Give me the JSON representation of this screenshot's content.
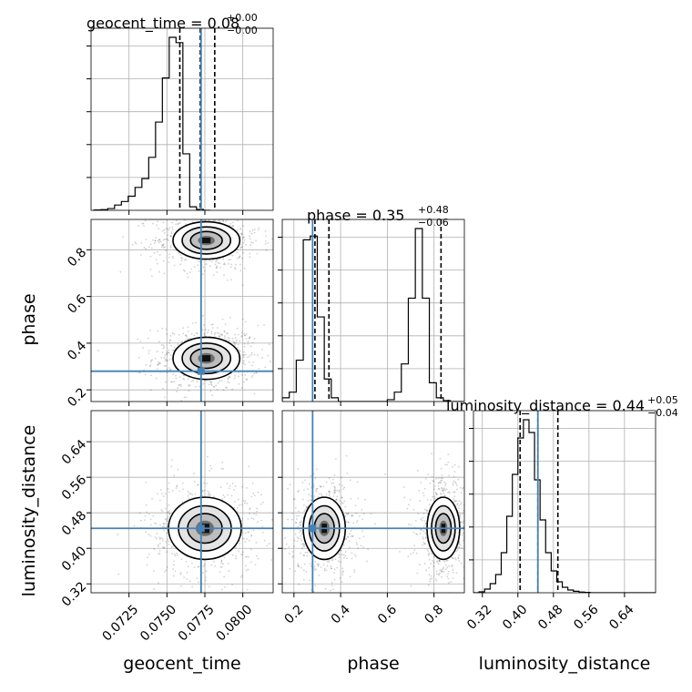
{
  "chart_data": {
    "type": "corner",
    "grid": true,
    "truth_color": "#4682b4",
    "contour_color": "#000000",
    "params": [
      {
        "key": "geocent_time",
        "label": "geocent_time",
        "title_main": "geocent_time = 0.08",
        "title_plus": "+0.00",
        "title_minus": "−0.00",
        "range": [
          0.07,
          0.082
        ],
        "ticks": [
          0.0725,
          0.075,
          0.0775,
          0.08
        ],
        "tick_labels": [
          "0.0725",
          "0.0750",
          "0.0775",
          "0.0800"
        ],
        "truth": 0.07725,
        "quantiles": [
          0.07585,
          0.0772,
          0.07815
        ],
        "hist": {
          "edges_start": 0.0702,
          "bin_width": 0.00045,
          "values": [
            0.002,
            0.004,
            0.01,
            0.03,
            0.05,
            0.08,
            0.13,
            0.18,
            0.3,
            0.5,
            0.75,
            0.98,
            0.95,
            0.32,
            0.02,
            0.005,
            0
          ]
        }
      },
      {
        "key": "phase",
        "label": "phase",
        "title_main": "phase = 0.35",
        "title_plus": "+0.48",
        "title_minus": "−0.06",
        "range": [
          0.15,
          0.93
        ],
        "ticks": [
          0.2,
          0.4,
          0.6,
          0.8
        ],
        "tick_labels": [
          "0.2",
          "0.4",
          "0.6",
          "0.8"
        ],
        "truth": 0.28,
        "quantiles": [
          0.29,
          0.35,
          0.83
        ],
        "hist": {
          "edges_start": 0.15,
          "bin_width": 0.03,
          "values": [
            0.02,
            0.05,
            0.22,
            0.86,
            0.88,
            0.45,
            0.12,
            0.02,
            0,
            0,
            0,
            0,
            0,
            0,
            0,
            0.01,
            0.05,
            0.2,
            0.55,
            0.92,
            0.55,
            0.1,
            0.02,
            0.005,
            0,
            0
          ]
        }
      },
      {
        "key": "luminosity_distance",
        "label": "luminosity_distance",
        "title_main": "luminosity_distance = 0.44",
        "title_plus": "+0.05",
        "title_minus": "−0.04",
        "range": [
          0.3,
          0.71
        ],
        "ticks": [
          0.32,
          0.4,
          0.48,
          0.56,
          0.64
        ],
        "tick_labels": [
          "0.32",
          "0.40",
          "0.48",
          "0.56",
          "0.64"
        ],
        "truth": 0.445,
        "quantiles": [
          0.405,
          0.445,
          0.49
        ],
        "hist": {
          "edges_start": 0.3,
          "bin_width": 0.0125,
          "values": [
            0,
            0.005,
            0.02,
            0.05,
            0.1,
            0.22,
            0.42,
            0.65,
            0.85,
            0.95,
            0.88,
            0.62,
            0.4,
            0.22,
            0.12,
            0.06,
            0.03,
            0.015,
            0.008,
            0.004,
            0.002,
            0,
            0,
            0,
            0,
            0,
            0,
            0,
            0,
            0,
            0,
            0,
            0
          ]
        }
      }
    ],
    "pairs": [
      {
        "row": 1,
        "col": 0,
        "modes": [
          {
            "cx": 0.0776,
            "cy": 0.335,
            "sx": 0.0011,
            "sy": 0.045
          },
          {
            "cx": 0.0776,
            "cy": 0.84,
            "sx": 0.0011,
            "sy": 0.04
          }
        ]
      },
      {
        "row": 2,
        "col": 0,
        "modes": [
          {
            "cx": 0.0775,
            "cy": 0.445,
            "sx": 0.0012,
            "sy": 0.035
          }
        ]
      },
      {
        "row": 2,
        "col": 1,
        "modes": [
          {
            "cx": 0.33,
            "cy": 0.445,
            "sx": 0.045,
            "sy": 0.035
          },
          {
            "cx": 0.84,
            "cy": 0.445,
            "sx": 0.035,
            "sy": 0.035
          }
        ]
      }
    ]
  }
}
